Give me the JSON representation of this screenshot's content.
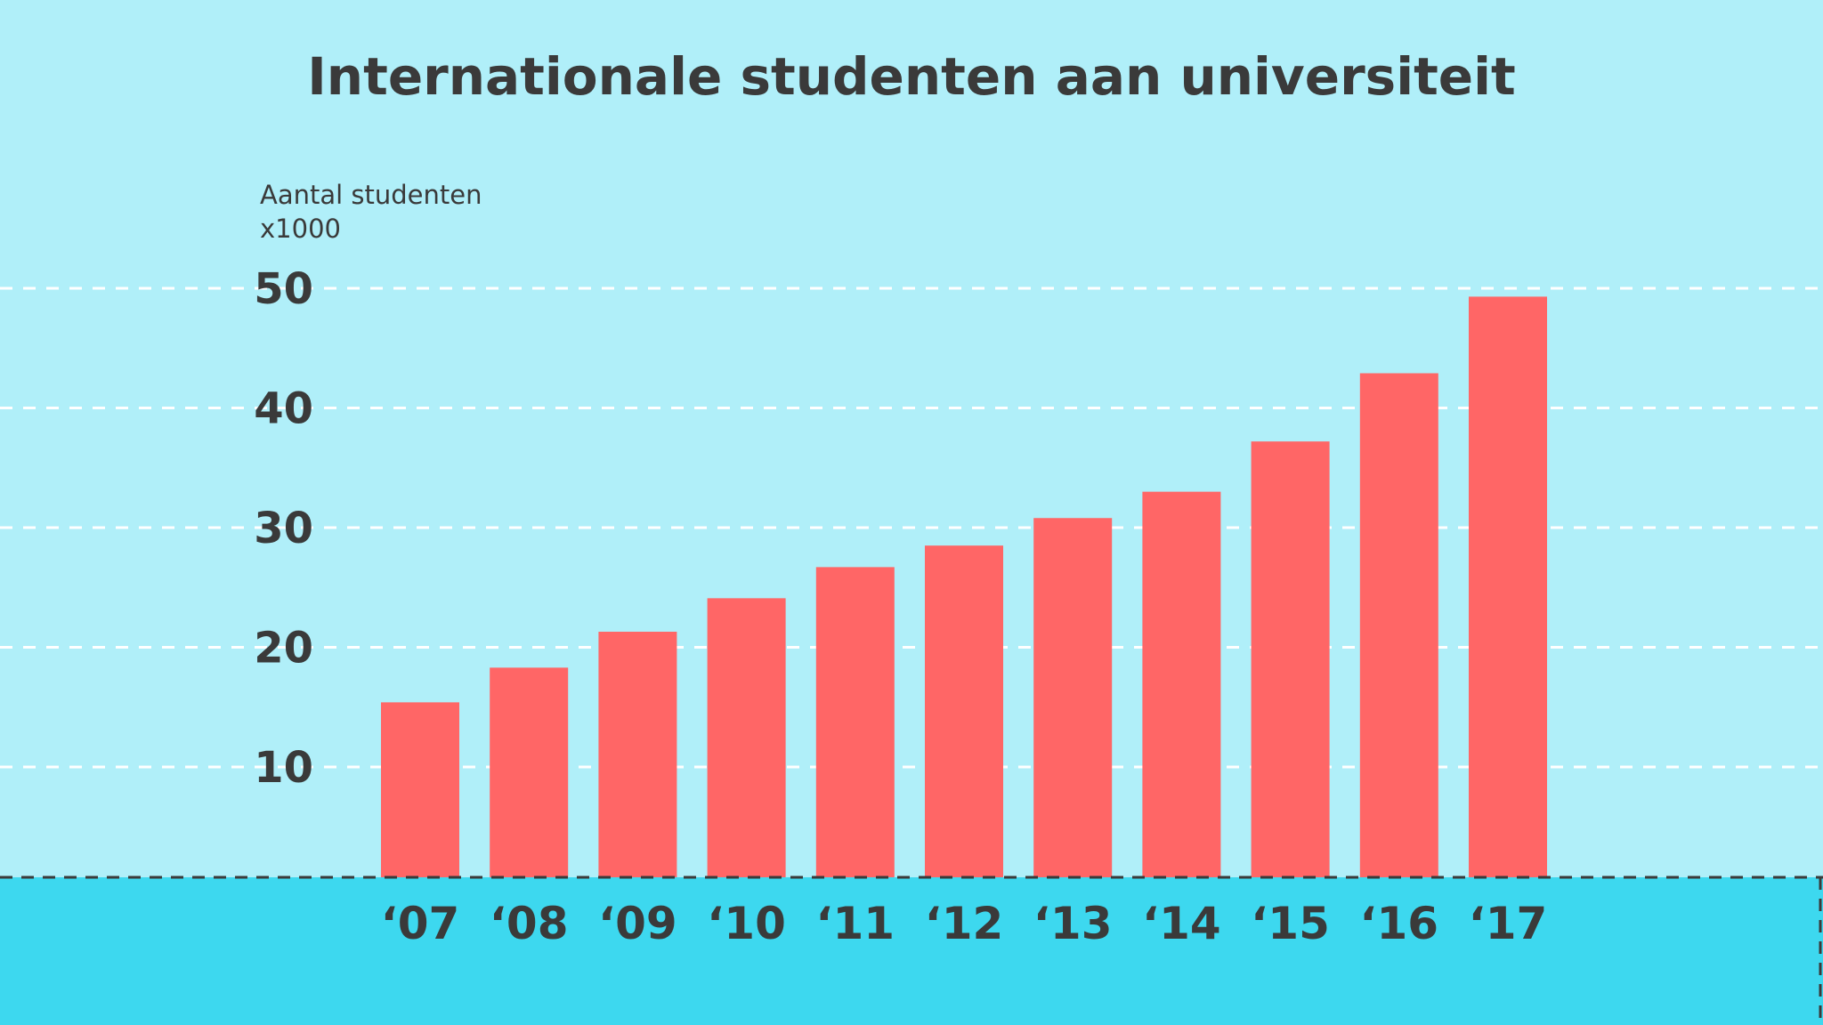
{
  "chart_data": {
    "type": "bar",
    "title": "Internationale studenten aan universiteit",
    "ylabel": "Aantal studenten",
    "ylabel_unit": "x1000",
    "categories": [
      "‘07",
      "‘08",
      "‘09",
      "‘10",
      "‘11",
      "‘12",
      "‘13",
      "‘14",
      "‘15",
      "‘16",
      "‘17"
    ],
    "values": [
      15.4,
      18.3,
      21.3,
      24.1,
      26.7,
      28.5,
      30.8,
      33.0,
      37.2,
      42.9,
      49.3
    ],
    "yticks": [
      "10",
      "20",
      "30",
      "40",
      "50"
    ],
    "ylim": [
      0,
      50
    ],
    "grid": true,
    "colors": {
      "bar": "#ff6666",
      "background": "#b0eff9",
      "ground": "#3dd8ef",
      "text": "#3a3a3a",
      "grid": "#ffffff"
    }
  }
}
